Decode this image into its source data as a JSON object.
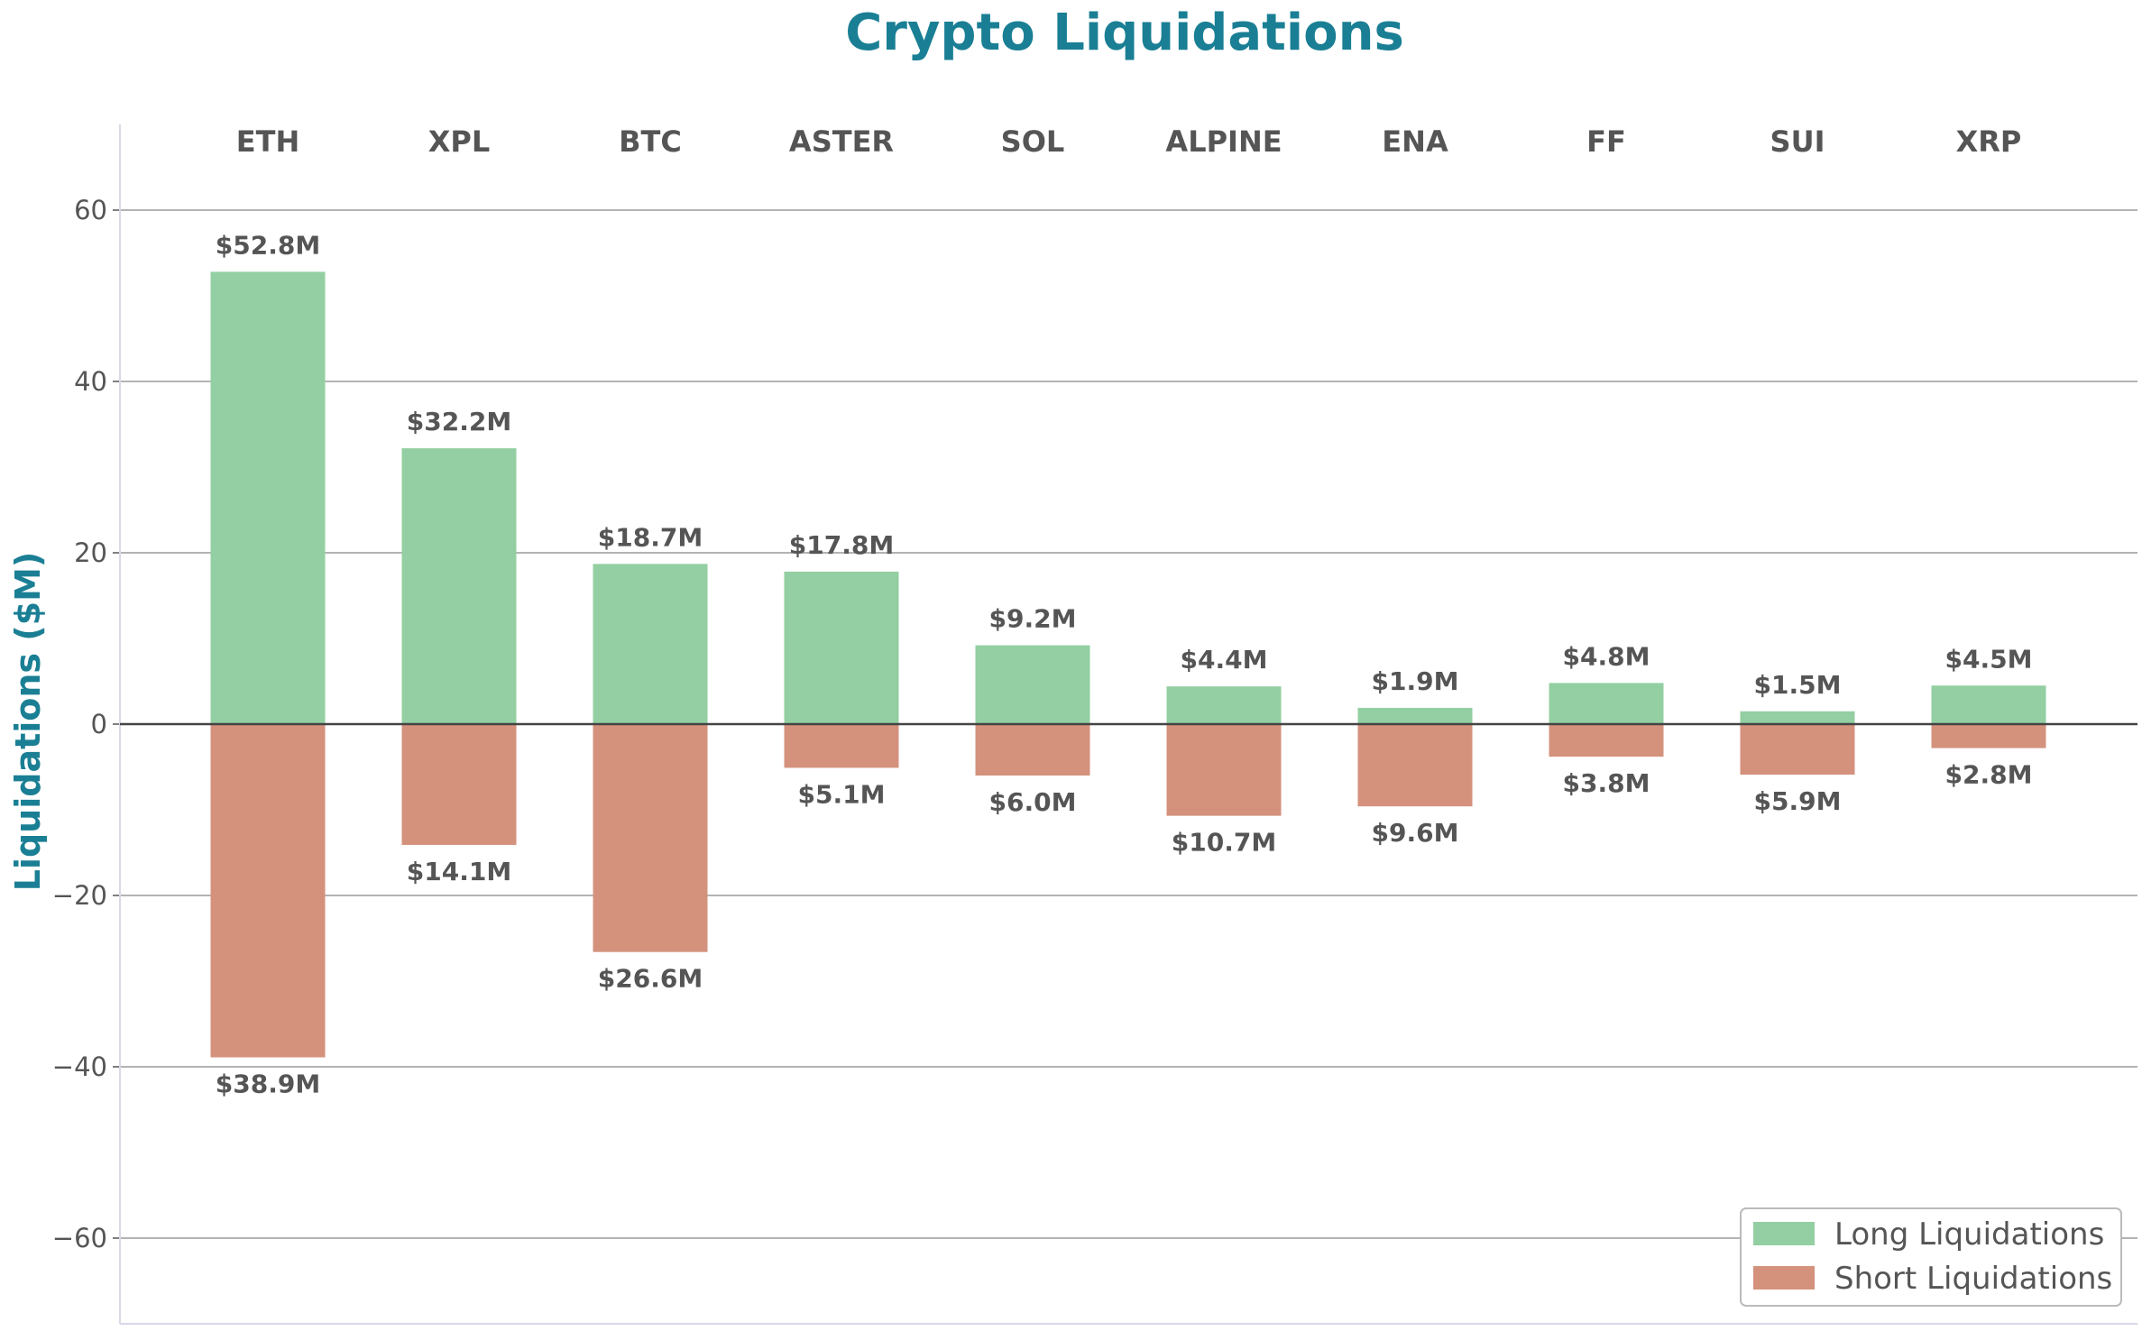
{
  "chart_data": {
    "type": "bar",
    "title": "Crypto Liquidations",
    "xlabel": "",
    "ylabel": "Liquidations ($M)",
    "ylim": [
      -70,
      70
    ],
    "yticks": [
      -60,
      -40,
      -20,
      0,
      20,
      40,
      60
    ],
    "ytick_labels": [
      "−60",
      "−40",
      "−20",
      "0",
      "20",
      "40",
      "60"
    ],
    "categories": [
      "ETH",
      "XPL",
      "BTC",
      "ASTER",
      "SOL",
      "ALPINE",
      "ENA",
      "FF",
      "SUI",
      "XRP"
    ],
    "series": [
      {
        "name": "Long Liquidations",
        "values": [
          52.8,
          32.2,
          18.7,
          17.8,
          9.2,
          4.4,
          1.9,
          4.8,
          1.5,
          4.5
        ],
        "labels": [
          "$52.8M",
          "$32.2M",
          "$18.7M",
          "$17.8M",
          "$9.2M",
          "$4.4M",
          "$1.9M",
          "$4.8M",
          "$1.5M",
          "$4.5M"
        ],
        "color": "#93cfa2"
      },
      {
        "name": "Short Liquidations",
        "values": [
          -38.9,
          -14.1,
          -26.6,
          -5.1,
          -6.0,
          -10.7,
          -9.6,
          -3.8,
          -5.9,
          -2.8
        ],
        "labels": [
          "$38.9M",
          "$14.1M",
          "$26.6M",
          "$5.1M",
          "$6.0M",
          "$10.7M",
          "$9.6M",
          "$3.8M",
          "$5.9M",
          "$2.8M"
        ],
        "color": "#d4927d"
      }
    ],
    "grid": true,
    "legend": "bottom-right",
    "title_color": "#1a7f94",
    "ylabel_color": "#1a7f94"
  }
}
